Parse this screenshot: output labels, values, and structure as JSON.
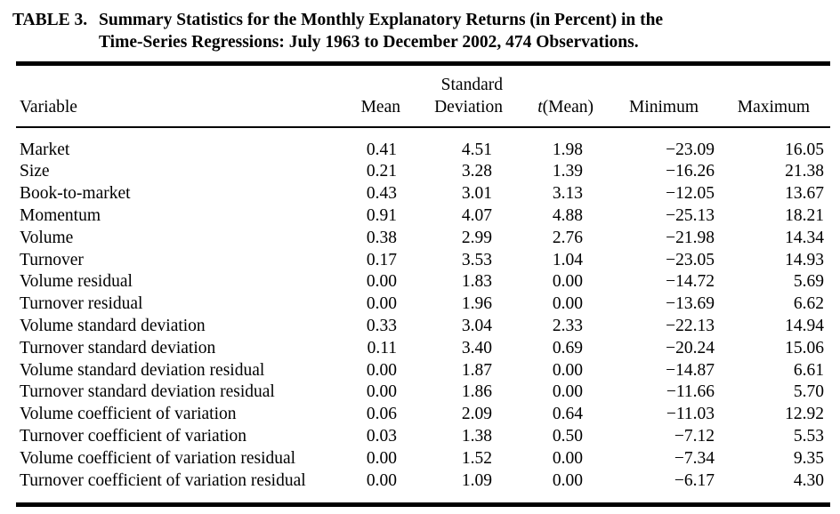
{
  "title": {
    "label": "TABLE 3.",
    "line1": "Summary Statistics for the Monthly Explanatory Returns (in Percent) in the",
    "line2": "Time-Series Regressions: July 1963 to December 2002, 474 Observations."
  },
  "table": {
    "header": {
      "variable": "Variable",
      "mean": "Mean",
      "std_line1": "Standard",
      "std_line2": "Deviation",
      "t_italic": "t",
      "t_rest": "(Mean)",
      "minimum": "Minimum",
      "maximum": "Maximum"
    },
    "rows": [
      {
        "variable": "Market",
        "mean": "0.41",
        "std": "4.51",
        "t": "1.98",
        "min": "−23.09",
        "max": "16.05"
      },
      {
        "variable": "Size",
        "mean": "0.21",
        "std": "3.28",
        "t": "1.39",
        "min": "−16.26",
        "max": "21.38"
      },
      {
        "variable": "Book-to-market",
        "mean": "0.43",
        "std": "3.01",
        "t": "3.13",
        "min": "−12.05",
        "max": "13.67"
      },
      {
        "variable": "Momentum",
        "mean": "0.91",
        "std": "4.07",
        "t": "4.88",
        "min": "−25.13",
        "max": "18.21"
      },
      {
        "variable": "Volume",
        "mean": "0.38",
        "std": "2.99",
        "t": "2.76",
        "min": "−21.98",
        "max": "14.34"
      },
      {
        "variable": "Turnover",
        "mean": "0.17",
        "std": "3.53",
        "t": "1.04",
        "min": "−23.05",
        "max": "14.93"
      },
      {
        "variable": "Volume residual",
        "mean": "0.00",
        "std": "1.83",
        "t": "0.00",
        "min": "−14.72",
        "max": "5.69"
      },
      {
        "variable": "Turnover residual",
        "mean": "0.00",
        "std": "1.96",
        "t": "0.00",
        "min": "−13.69",
        "max": "6.62"
      },
      {
        "variable": "Volume standard deviation",
        "mean": "0.33",
        "std": "3.04",
        "t": "2.33",
        "min": "−22.13",
        "max": "14.94"
      },
      {
        "variable": "Turnover standard deviation",
        "mean": "0.11",
        "std": "3.40",
        "t": "0.69",
        "min": "−20.24",
        "max": "15.06"
      },
      {
        "variable": "Volume standard deviation residual",
        "mean": "0.00",
        "std": "1.87",
        "t": "0.00",
        "min": "−14.87",
        "max": "6.61"
      },
      {
        "variable": "Turnover standard deviation residual",
        "mean": "0.00",
        "std": "1.86",
        "t": "0.00",
        "min": "−11.66",
        "max": "5.70"
      },
      {
        "variable": "Volume coefficient of variation",
        "mean": "0.06",
        "std": "2.09",
        "t": "0.64",
        "min": "−11.03",
        "max": "12.92"
      },
      {
        "variable": "Turnover coefficient of variation",
        "mean": "0.03",
        "std": "1.38",
        "t": "0.50",
        "min": "−7.12",
        "max": "5.53"
      },
      {
        "variable": "Volume coefficient of variation residual",
        "mean": "0.00",
        "std": "1.52",
        "t": "0.00",
        "min": "−7.34",
        "max": "9.35"
      },
      {
        "variable": "Turnover coefficient of variation residual",
        "mean": "0.00",
        "std": "1.09",
        "t": "0.00",
        "min": "−6.17",
        "max": "4.30"
      }
    ]
  },
  "colors": {
    "text": "#000000",
    "background": "#ffffff",
    "rule": "#000000"
  }
}
